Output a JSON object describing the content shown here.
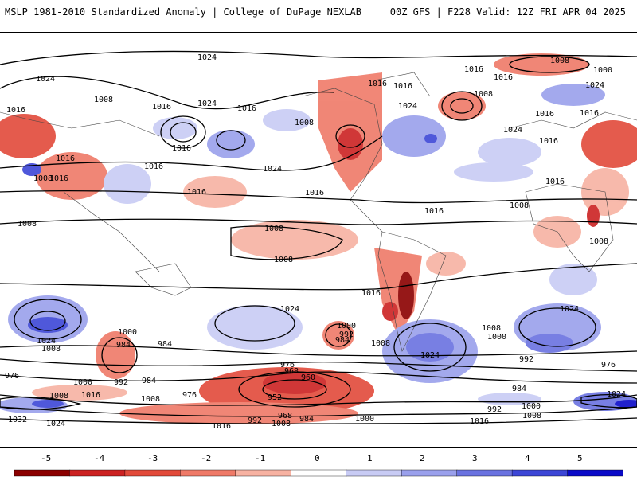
{
  "header": {
    "left_title": "MSLP 1981-2010 Standardized Anomaly | College of DuPage NEXLAB",
    "right_title": "00Z GFS | F228 Valid: 12Z FRI APR 04 2025"
  },
  "colorbar": {
    "ticks": [
      "-5",
      "-4",
      "-3",
      "-2",
      "-1",
      "0",
      "1",
      "2",
      "3",
      "4",
      "5"
    ],
    "colors": [
      "#8b0000",
      "#cc2222",
      "#e24a3a",
      "#ef7a68",
      "#f7b2a2",
      "#ffffff",
      "#c8cbf4",
      "#9aa0ec",
      "#6a72e0",
      "#3c46d6",
      "#0a0ac8"
    ]
  },
  "map": {
    "isobar_labels": [
      "1024",
      "1024",
      "1008",
      "1016",
      "1016",
      "1024",
      "1016",
      "1008",
      "1016",
      "1016",
      "1016",
      "1008",
      "1000",
      "1016",
      "1024",
      "1008",
      "1024",
      "1016",
      "1016",
      "1016",
      "1024",
      "1016",
      "1016",
      "1016",
      "1008",
      "1016",
      "1024",
      "1008",
      "1008",
      "1016",
      "1016",
      "1016",
      "1008",
      "1008",
      "1016",
      "1008",
      "1016",
      "1024",
      "1024",
      "1024",
      "1008",
      "1000",
      "984",
      "1000",
      "992",
      "984",
      "984",
      "1008",
      "1000",
      "1024",
      "1008",
      "1000",
      "992",
      "976",
      "976",
      "1000",
      "992",
      "984",
      "968",
      "960",
      "976",
      "952",
      "984",
      "976",
      "1008",
      "1016",
      "1008",
      "1032",
      "1024",
      "1016",
      "992",
      "968",
      "1008",
      "984",
      "1000",
      "992",
      "1008",
      "1016",
      "1024"
    ]
  }
}
